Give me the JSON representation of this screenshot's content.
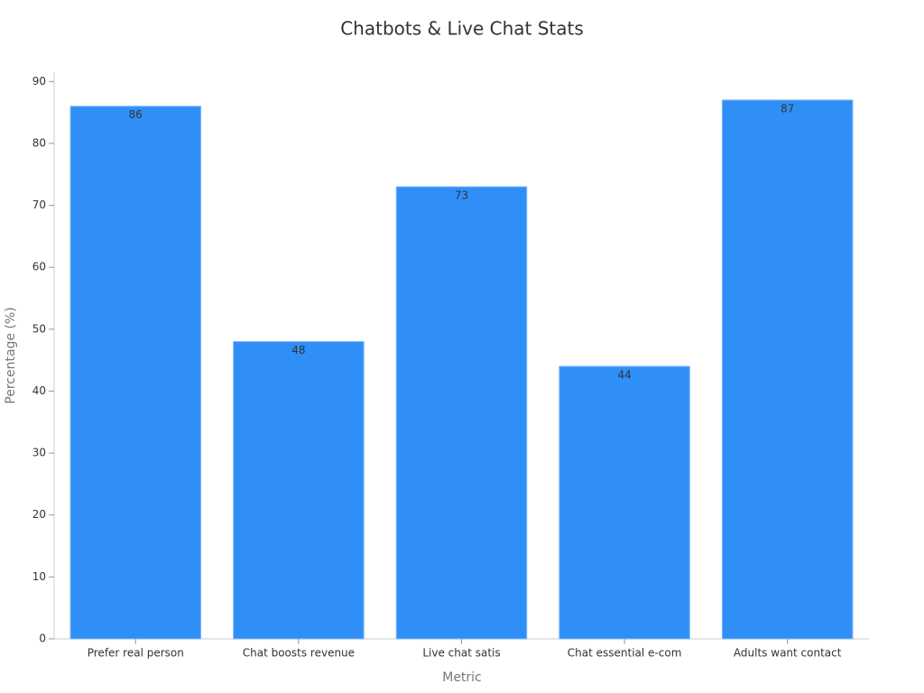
{
  "chart_data": {
    "type": "bar",
    "title": "Chatbots & Live Chat Stats",
    "x_label": "Metric",
    "y_label": "Percentage (%)",
    "categories": [
      "Prefer real person",
      "Chat boosts revenue",
      "Live chat satis",
      "Chat essential e-com",
      "Adults want contact"
    ],
    "values": [
      86,
      48,
      73,
      44,
      87
    ],
    "color": "#2f8ff7",
    "ylim": [
      0,
      91.5
    ],
    "yticks": [
      0,
      10,
      20,
      30,
      40,
      50,
      60,
      70,
      80,
      90
    ],
    "grid": false
  }
}
